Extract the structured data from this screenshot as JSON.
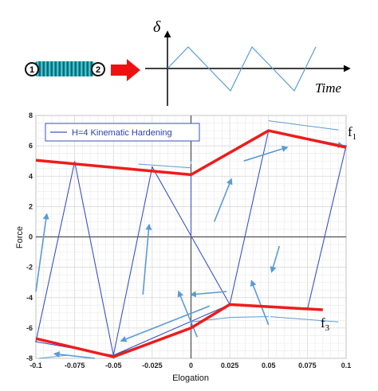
{
  "inset": {
    "node_labels": [
      "1",
      "2"
    ],
    "y_symbol": "δ",
    "x_label": "Time"
  },
  "chart_data": {
    "type": "line",
    "title": "",
    "xlabel": "Elogation",
    "ylabel": "Force",
    "xlim": [
      -0.1,
      0.1
    ],
    "ylim": [
      -8,
      8
    ],
    "x_ticks": [
      "-0.1",
      "-0.075",
      "-0.05",
      "-0.025",
      "0",
      "0.025",
      "0.05",
      "0.075",
      "0.1"
    ],
    "y_ticks": [
      "8",
      "6",
      "4",
      "2",
      "0",
      "-2",
      "-4",
      "-6",
      "-8"
    ],
    "grid": true,
    "legend_position": "top-left",
    "series": [
      {
        "name": "H=4 Kinematic Hardening",
        "color": "#3a53c4",
        "x": [
          0,
          0,
          0.05,
          0.025,
          -0.025,
          -0.025,
          -0.05,
          -0.075,
          -0.075,
          -0.1,
          -0.1,
          -0.05,
          -0.05,
          0,
          0,
          0.025,
          0.05,
          0.05,
          0.1,
          0.1,
          0.075,
          0.025,
          0.025,
          -0.05
        ],
        "y": [
          0,
          4.1,
          7.0,
          -4.45,
          4.6,
          4.6,
          -7.8,
          4.95,
          4.95,
          -6.9,
          -6.9,
          -7.8,
          -7.8,
          -6.05,
          -6.05,
          -4.45,
          7.0,
          7.0,
          6.0,
          6.0,
          -4.8,
          -4.45,
          -4.45,
          -7.8
        ]
      }
    ],
    "bounds": [
      {
        "name": "f1",
        "color": "#ee1c1c",
        "x": [
          -0.1,
          0,
          0.05,
          0.1
        ],
        "y": [
          5.05,
          4.1,
          7.0,
          5.9
        ]
      },
      {
        "name": "f3",
        "color": "#ee1c1c",
        "x": [
          -0.1,
          -0.05,
          0,
          0.025,
          0.085
        ],
        "y": [
          -6.7,
          -7.9,
          -6.0,
          -4.45,
          -4.8
        ]
      }
    ],
    "annotations": [
      "f1",
      "f3"
    ]
  }
}
